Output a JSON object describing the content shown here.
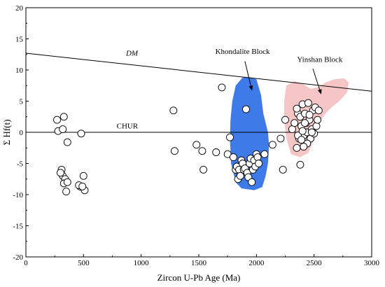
{
  "chart_data": {
    "type": "scatter",
    "xlabel": "Zircon U-Pb Age (Ma)",
    "ylabel": "Σ Hf(t)",
    "xlim": [
      0,
      3000
    ],
    "ylim": [
      -20,
      20
    ],
    "xticks": [
      "0",
      "500",
      "1000",
      "1500",
      "2000",
      "2500",
      "3000"
    ],
    "yticks": [
      "-20",
      "-15",
      "-10",
      "-5",
      "0",
      "5",
      "10",
      "15",
      "20"
    ],
    "grid": false,
    "reference_lines": [
      {
        "name": "DM",
        "x": [
          0,
          3000
        ],
        "y": [
          12.7,
          6.6
        ]
      },
      {
        "name": "CHUR",
        "x": [
          0,
          3000
        ],
        "y": [
          0,
          0
        ]
      }
    ],
    "fields": [
      {
        "name": "Khondalite Block",
        "color": "#3f7be8",
        "outline": [
          [
            1820,
            7.5
          ],
          [
            1880,
            8.8
          ],
          [
            1950,
            8.8
          ],
          [
            2000,
            8.5
          ],
          [
            2040,
            6
          ],
          [
            2060,
            3
          ],
          [
            2100,
            0
          ],
          [
            2110,
            -2
          ],
          [
            2100,
            -5
          ],
          [
            2080,
            -7
          ],
          [
            2050,
            -8.8
          ],
          [
            1980,
            -9.3
          ],
          [
            1870,
            -9
          ],
          [
            1820,
            -8
          ],
          [
            1780,
            -5
          ],
          [
            1770,
            -1
          ],
          [
            1775,
            2
          ],
          [
            1790,
            5
          ]
        ]
      },
      {
        "name": "Yinshan Block",
        "color": "#f6c6c6",
        "outline": [
          [
            2260,
            7.5
          ],
          [
            2330,
            8.2
          ],
          [
            2400,
            7.8
          ],
          [
            2470,
            7
          ],
          [
            2530,
            7.2
          ],
          [
            2600,
            8
          ],
          [
            2680,
            8.5
          ],
          [
            2760,
            8.7
          ],
          [
            2800,
            8
          ],
          [
            2790,
            6.5
          ],
          [
            2720,
            5
          ],
          [
            2650,
            4
          ],
          [
            2600,
            3
          ],
          [
            2560,
            2
          ],
          [
            2540,
            1
          ],
          [
            2510,
            -0.5
          ],
          [
            2480,
            -2
          ],
          [
            2450,
            -3.3
          ],
          [
            2380,
            -4
          ],
          [
            2300,
            -3.5
          ],
          [
            2260,
            -1
          ],
          [
            2240,
            2
          ],
          [
            2240,
            5
          ]
        ]
      }
    ],
    "labels": [
      {
        "text": "DM",
        "x": 920,
        "y": 12.3,
        "italic": true
      },
      {
        "text": "CHUR",
        "x": 880,
        "y": 0.6
      },
      {
        "text": "Khondalite Block",
        "x": 1880,
        "y": 12.6
      },
      {
        "text": "Yinshan Block",
        "x": 2550,
        "y": 11.3
      }
    ],
    "arrows": [
      {
        "from": [
          1900,
          11.4
        ],
        "to": [
          1960,
          6.8
        ]
      },
      {
        "from": [
          2490,
          10.2
        ],
        "to": [
          2560,
          6.2
        ]
      }
    ],
    "points": {
      "x": [
        270,
        330,
        280,
        320,
        360,
        480,
        310,
        320,
        340,
        300,
        330,
        360,
        350,
        470,
        500,
        510,
        460,
        490,
        1280,
        1290,
        1480,
        1530,
        1540,
        1650,
        1700,
        1750,
        1770,
        1800,
        1820,
        1830,
        1840,
        1850,
        1860,
        1870,
        1880,
        1890,
        1900,
        1910,
        1920,
        1930,
        1940,
        1950,
        1960,
        1970,
        1980,
        1990,
        2000,
        2010,
        2020,
        2070,
        2140,
        2210,
        2230,
        2250,
        2310,
        2330,
        2350,
        2360,
        2370,
        2380,
        2390,
        2400,
        2410,
        2420,
        2430,
        2440,
        2450,
        2460,
        2470,
        2480,
        2490,
        2500,
        2510,
        2520,
        2530,
        2540,
        2350,
        2360,
        2380,
        2400,
        2420,
        2440,
        2460,
        2480,
        2390,
        2410
      ],
      "y": [
        2,
        2.5,
        0.2,
        0.5,
        -1.6,
        -0.2,
        -6,
        -7,
        -7.5,
        -6.5,
        -8.2,
        -8,
        -9.5,
        -8.7,
        -7,
        -9.3,
        -8.5,
        -8.7,
        3.5,
        -3,
        -2,
        -3,
        -6,
        -3.2,
        7.2,
        -3.5,
        -0.8,
        -4,
        -6,
        -5.5,
        -7.5,
        -6,
        -7,
        -4.5,
        -5,
        -6,
        -5.8,
        3.7,
        -6.5,
        -7.2,
        -5,
        -4.2,
        -8,
        -6,
        -4.5,
        -5.5,
        -3.5,
        -4,
        -5,
        -3.5,
        -2,
        -1,
        -6,
        2,
        0.5,
        1.5,
        -2.5,
        3,
        -1,
        2.5,
        1,
        4.5,
        -0.5,
        3,
        1.5,
        0,
        4.7,
        2,
        -1,
        0.5,
        3.5,
        -0.2,
        4,
        1,
        2,
        3.5,
        3.8,
        -0.5,
        -5.2,
        0.2,
        1.5,
        -1.8,
        2.8,
        0,
        -1.2,
        -2.3
      ]
    }
  }
}
